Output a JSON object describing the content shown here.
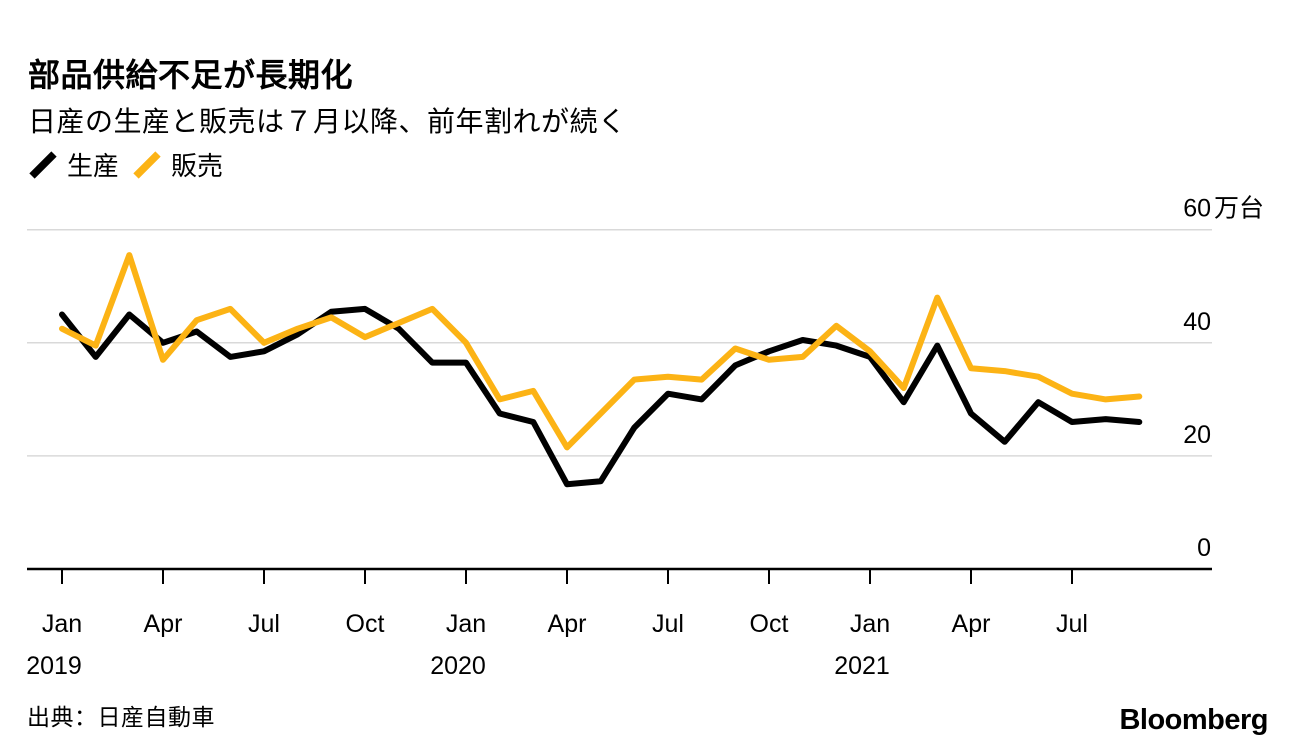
{
  "page": {
    "title": "部品供給不足が長期化",
    "subtitle": "日産の生産と販売は７月以降、前年割れが続く",
    "source": "出典：日産自動車",
    "brand": "Bloomberg"
  },
  "legend": {
    "items": [
      {
        "id": "production",
        "label": "生産",
        "color": "#000000"
      },
      {
        "id": "sales",
        "label": "販売",
        "color": "#FCB315"
      }
    ]
  },
  "chart_data": {
    "type": "line",
    "unit": "万台",
    "title": "部品供給不足が長期化",
    "subtitle": "日産の生産と販売は７月以降、前年割れが続く",
    "x": [
      "Jan 2019",
      "Feb 2019",
      "Mar 2019",
      "Apr 2019",
      "May 2019",
      "Jun 2019",
      "Jul 2019",
      "Aug 2019",
      "Sep 2019",
      "Oct 2019",
      "Nov 2019",
      "Dec 2019",
      "Jan 2020",
      "Feb 2020",
      "Mar 2020",
      "Apr 2020",
      "May 2020",
      "Jun 2020",
      "Jul 2020",
      "Aug 2020",
      "Sep 2020",
      "Oct 2020",
      "Nov 2020",
      "Dec 2020",
      "Jan 2021",
      "Feb 2021",
      "Mar 2021",
      "Apr 2021",
      "May 2021",
      "Jun 2021",
      "Jul 2021",
      "Aug 2021",
      "Sep 2021"
    ],
    "series": [
      {
        "name": "生産",
        "color": "#000000",
        "values": [
          45,
          37.5,
          45,
          40,
          42,
          37.5,
          38.5,
          41.5,
          45.5,
          46,
          42.5,
          36.5,
          36.5,
          27.5,
          26,
          15,
          15.5,
          25,
          31,
          30,
          36,
          38.5,
          40.5,
          39.5,
          37.5,
          29.5,
          39.5,
          27.5,
          22.5,
          29.5,
          26,
          26.5,
          26
        ]
      },
      {
        "name": "販売",
        "color": "#FCB315",
        "values": [
          42.5,
          39.5,
          55.5,
          37,
          44,
          46,
          40,
          42.5,
          44.5,
          41,
          43.5,
          46,
          40,
          30,
          31.5,
          21.5,
          27.5,
          33.5,
          34,
          33.5,
          39,
          37,
          37.5,
          43,
          38.5,
          32,
          48,
          35.5,
          35,
          34,
          31,
          30,
          30.5
        ]
      }
    ],
    "ylim": [
      0,
      64
    ],
    "y_ticks": [
      {
        "value": 60,
        "label": "60",
        "unit": "万台"
      },
      {
        "value": 40,
        "label": "40",
        "unit": ""
      },
      {
        "value": 20,
        "label": "20",
        "unit": ""
      },
      {
        "value": 0,
        "label": "0",
        "unit": ""
      }
    ],
    "x_ticks": [
      {
        "index": 0,
        "label": "Jan",
        "year": "2019"
      },
      {
        "index": 3,
        "label": "Apr",
        "year": ""
      },
      {
        "index": 6,
        "label": "Jul",
        "year": ""
      },
      {
        "index": 9,
        "label": "Oct",
        "year": ""
      },
      {
        "index": 12,
        "label": "Jan",
        "year": "2020"
      },
      {
        "index": 15,
        "label": "Apr",
        "year": ""
      },
      {
        "index": 18,
        "label": "Jul",
        "year": ""
      },
      {
        "index": 21,
        "label": "Oct",
        "year": ""
      },
      {
        "index": 24,
        "label": "Jan",
        "year": "2021"
      },
      {
        "index": 27,
        "label": "Apr",
        "year": ""
      },
      {
        "index": 30,
        "label": "Jul",
        "year": ""
      }
    ],
    "grid": true,
    "legend_position": "top-left",
    "colors": {
      "grid": "#D9D9D9",
      "axis": "#000000"
    }
  }
}
